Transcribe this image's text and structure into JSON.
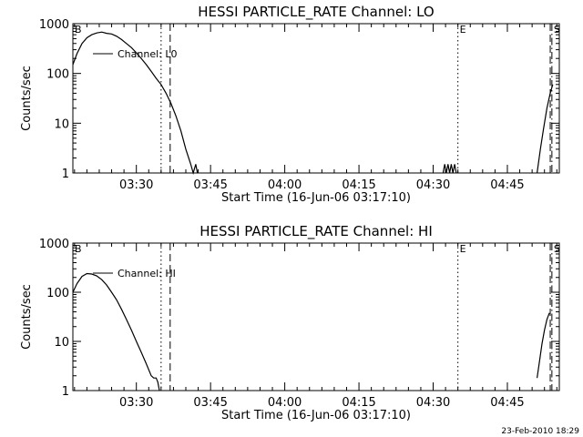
{
  "footer_timestamp": "23-Feb-2010 18:29",
  "chart_data": [
    {
      "type": "line",
      "title": "HESSI PARTICLE_RATE Channel: LO",
      "xlabel": "Start Time (16-Jun-06 03:17:10)",
      "ylabel": "Counts/sec",
      "yscale": "log",
      "ylim": [
        1,
        1000
      ],
      "xlim": [
        "03:17:10",
        "04:55:30"
      ],
      "xticks": [
        "03:30",
        "03:45",
        "04:00",
        "04:15",
        "04:30",
        "04:45"
      ],
      "yticks": [
        "1",
        "10",
        "100",
        "1000"
      ],
      "grid": false,
      "legend": {
        "label": "Channel: L0",
        "placement": "top-left"
      },
      "markers": [
        {
          "time": "03:17:10",
          "style": "letter",
          "letter": "B"
        },
        {
          "time": "03:35:00",
          "style": "dotted"
        },
        {
          "time": "03:36:50",
          "style": "dashed"
        },
        {
          "time": "04:35:00",
          "style": "dotted",
          "letter": "E"
        },
        {
          "time": "04:53:40",
          "style": "dashed"
        },
        {
          "time": "04:54:00",
          "style": "dashdot",
          "letter": "S"
        }
      ],
      "series": [
        {
          "name": "Channel: L0",
          "segments": [
            [
              [
                "03:17:10",
                150
              ],
              [
                "03:18:00",
                250
              ],
              [
                "03:19:00",
                400
              ],
              [
                "03:20:00",
                520
              ],
              [
                "03:21:00",
                600
              ],
              [
                "03:22:00",
                650
              ],
              [
                "03:23:00",
                680
              ],
              [
                "03:24:00",
                640
              ],
              [
                "03:25:00",
                620
              ],
              [
                "03:26:00",
                560
              ],
              [
                "03:27:00",
                480
              ],
              [
                "03:28:00",
                400
              ],
              [
                "03:29:00",
                330
              ],
              [
                "03:30:00",
                260
              ],
              [
                "03:31:00",
                200
              ],
              [
                "03:32:00",
                150
              ],
              [
                "03:33:00",
                110
              ],
              [
                "03:34:00",
                80
              ],
              [
                "03:35:00",
                60
              ],
              [
                "03:36:00",
                40
              ],
              [
                "03:37:00",
                25
              ],
              [
                "03:38:00",
                14
              ],
              [
                "03:39:00",
                7
              ],
              [
                "03:40:00",
                3
              ],
              [
                "03:41:00",
                1.5
              ],
              [
                "03:41:30",
                1
              ],
              [
                "03:42:00",
                1.5
              ],
              [
                "03:42:20",
                1
              ]
            ],
            [
              [
                "04:32:00",
                1
              ],
              [
                "04:32:20",
                1.5
              ],
              [
                "04:32:40",
                1
              ],
              [
                "04:33:00",
                1.5
              ],
              [
                "04:33:20",
                1
              ],
              [
                "04:33:40",
                1.5
              ],
              [
                "04:34:00",
                1
              ],
              [
                "04:34:20",
                1.5
              ],
              [
                "04:34:40",
                1
              ]
            ],
            [
              [
                "04:51:00",
                1
              ],
              [
                "04:51:40",
                3
              ],
              [
                "04:52:20",
                8
              ],
              [
                "04:53:00",
                20
              ],
              [
                "04:53:40",
                40
              ],
              [
                "04:54:10",
                60
              ]
            ]
          ]
        }
      ]
    },
    {
      "type": "line",
      "title": "HESSI PARTICLE_RATE Channel: HI",
      "xlabel": "Start Time (16-Jun-06 03:17:10)",
      "ylabel": "Counts/sec",
      "yscale": "log",
      "ylim": [
        1,
        1000
      ],
      "xlim": [
        "03:17:10",
        "04:55:30"
      ],
      "xticks": [
        "03:30",
        "03:45",
        "04:00",
        "04:15",
        "04:30",
        "04:45"
      ],
      "yticks": [
        "1",
        "10",
        "100",
        "1000"
      ],
      "grid": false,
      "legend": {
        "label": "Channel: HI",
        "placement": "top-left"
      },
      "markers": [
        {
          "time": "03:17:10",
          "style": "letter",
          "letter": "B"
        },
        {
          "time": "03:35:00",
          "style": "dotted"
        },
        {
          "time": "03:36:50",
          "style": "dashed"
        },
        {
          "time": "04:35:00",
          "style": "dotted",
          "letter": "E"
        },
        {
          "time": "04:53:40",
          "style": "dashed"
        },
        {
          "time": "04:54:00",
          "style": "dashdot",
          "letter": "S"
        }
      ],
      "series": [
        {
          "name": "Channel: HI",
          "segments": [
            [
              [
                "03:17:10",
                100
              ],
              [
                "03:18:00",
                150
              ],
              [
                "03:19:00",
                210
              ],
              [
                "03:20:00",
                240
              ],
              [
                "03:21:00",
                235
              ],
              [
                "03:22:00",
                215
              ],
              [
                "03:23:00",
                180
              ],
              [
                "03:24:00",
                140
              ],
              [
                "03:25:00",
                100
              ],
              [
                "03:26:00",
                70
              ],
              [
                "03:27:00",
                45
              ],
              [
                "03:28:00",
                28
              ],
              [
                "03:29:00",
                17
              ],
              [
                "03:30:00",
                10
              ],
              [
                "03:31:00",
                6
              ],
              [
                "03:32:00",
                3.5
              ],
              [
                "03:33:00",
                2
              ],
              [
                "03:33:30",
                1.8
              ],
              [
                "03:34:00",
                1.8
              ],
              [
                "03:34:20",
                1.5
              ],
              [
                "03:34:40",
                1
              ]
            ],
            [
              [
                "04:51:00",
                1.8
              ],
              [
                "04:51:30",
                4
              ],
              [
                "04:52:00",
                9
              ],
              [
                "04:52:30",
                17
              ],
              [
                "04:53:00",
                28
              ],
              [
                "04:53:30",
                38
              ]
            ]
          ]
        }
      ]
    }
  ]
}
